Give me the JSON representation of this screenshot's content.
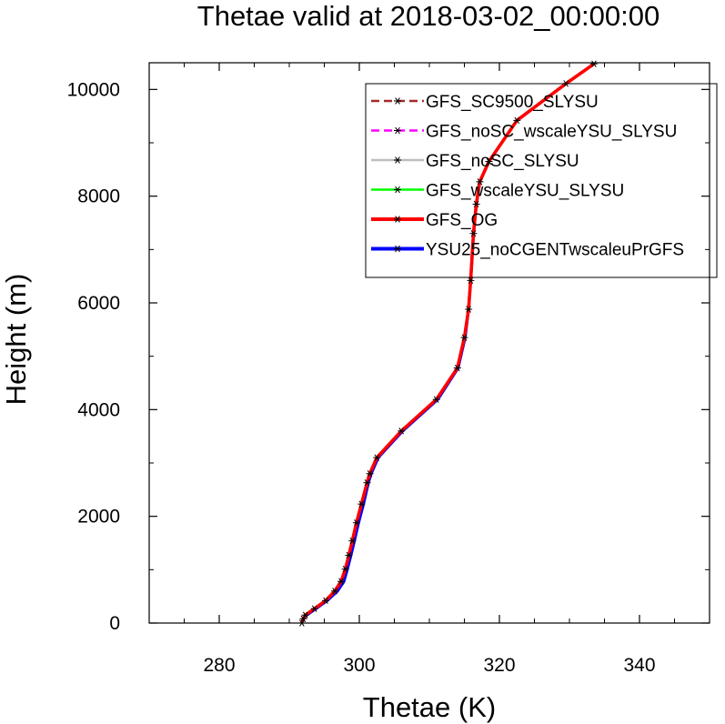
{
  "chart_data": {
    "type": "line",
    "title": "Thetae valid at 2018-03-02_00:00:00",
    "xlabel": "Thetae (K)",
    "ylabel": "Height (m)",
    "xlim": [
      270,
      350
    ],
    "ylim": [
      0,
      10500
    ],
    "xticks": [
      280,
      300,
      320,
      340
    ],
    "yticks": [
      0,
      2000,
      4000,
      6000,
      8000,
      10000
    ],
    "grid": false,
    "legend_position": "top-right",
    "series": [
      {
        "name": "GFS_SC9500_SLYSU",
        "color": "#a52a2a",
        "dashed": true,
        "marker": "asterisk",
        "x": [
          291.8,
          292.0,
          292.3,
          293.6,
          295.2,
          296.5,
          297.4,
          298.0,
          298.5,
          299.0,
          299.6,
          300.3,
          301.1,
          301.5,
          302.5,
          306.0,
          311.0,
          314.0,
          315.0,
          315.6,
          315.9,
          316.3,
          316.7,
          317.2,
          318.5,
          322.5,
          329.5,
          333.5
        ],
        "y": [
          0,
          80,
          150,
          270,
          420,
          600,
          780,
          1010,
          1270,
          1540,
          1880,
          2230,
          2630,
          2800,
          3100,
          3600,
          4190,
          4780,
          5350,
          5880,
          6420,
          7300,
          7850,
          8270,
          8650,
          9420,
          10110,
          10480
        ]
      },
      {
        "name": "GFS_noSC_wscaleYSU_SLYSU",
        "color": "#ff00ff",
        "dashed": true,
        "marker": "asterisk",
        "x": [
          291.8,
          292.0,
          292.3,
          293.6,
          295.2,
          296.5,
          297.4,
          298.0,
          298.5,
          299.0,
          299.6,
          300.3,
          301.1,
          301.5,
          302.5,
          306.0,
          311.0,
          314.0,
          315.0,
          315.6,
          315.9,
          316.3,
          316.7,
          317.2,
          318.5,
          322.5,
          329.5,
          333.5
        ],
        "y": [
          0,
          80,
          150,
          270,
          420,
          600,
          780,
          1010,
          1270,
          1540,
          1880,
          2230,
          2630,
          2800,
          3100,
          3600,
          4190,
          4780,
          5350,
          5880,
          6420,
          7300,
          7850,
          8270,
          8650,
          9420,
          10110,
          10480
        ]
      },
      {
        "name": "GFS_noSC_SLYSU",
        "color": "#bebebe",
        "dashed": false,
        "marker": "asterisk",
        "x": [
          291.8,
          292.0,
          292.3,
          293.6,
          295.2,
          296.5,
          297.4,
          298.0,
          298.5,
          299.0,
          299.6,
          300.3,
          301.1,
          301.5,
          302.5,
          306.0,
          311.0,
          314.0,
          315.0,
          315.6,
          315.9,
          316.3,
          316.7,
          317.2,
          318.5,
          322.5,
          329.5,
          333.5
        ],
        "y": [
          0,
          80,
          150,
          270,
          420,
          600,
          780,
          1010,
          1270,
          1540,
          1880,
          2230,
          2630,
          2800,
          3100,
          3600,
          4190,
          4780,
          5350,
          5880,
          6420,
          7300,
          7850,
          8270,
          8650,
          9420,
          10110,
          10480
        ]
      },
      {
        "name": "GFS_wscaleYSU_SLYSU",
        "color": "#00ff00",
        "dashed": false,
        "marker": "asterisk",
        "x": [
          291.8,
          292.0,
          292.3,
          293.6,
          295.2,
          296.5,
          297.4,
          298.0,
          298.5,
          299.0,
          299.6,
          300.3,
          301.1,
          301.5,
          302.5,
          306.0,
          311.0,
          314.0,
          315.0,
          315.6,
          315.9,
          316.3,
          316.7,
          317.2,
          318.5,
          322.5,
          329.5,
          333.5
        ],
        "y": [
          0,
          80,
          150,
          270,
          420,
          600,
          780,
          1010,
          1270,
          1540,
          1880,
          2230,
          2630,
          2800,
          3100,
          3600,
          4190,
          4780,
          5350,
          5880,
          6420,
          7300,
          7850,
          8270,
          8650,
          9420,
          10110,
          10480
        ]
      },
      {
        "name": "YSU25_noCGENTwscaleuPrGFS",
        "color": "#0000ff",
        "dashed": false,
        "marker": "asterisk",
        "x": [
          291.8,
          292.0,
          292.5,
          293.8,
          295.4,
          296.9,
          297.8,
          298.3,
          298.8,
          299.3,
          299.9,
          300.6,
          301.3,
          301.7,
          302.7,
          306.2,
          311.2,
          314.1,
          315.1,
          315.6,
          315.9,
          316.3,
          316.7,
          317.2,
          318.5,
          322.5,
          329.5,
          333.5
        ],
        "y": [
          0,
          80,
          150,
          270,
          420,
          600,
          780,
          1010,
          1270,
          1540,
          1880,
          2230,
          2630,
          2800,
          3100,
          3600,
          4190,
          4780,
          5350,
          5880,
          6420,
          7300,
          7850,
          8270,
          8650,
          9420,
          10110,
          10480
        ]
      },
      {
        "name": "GFS_OG",
        "color": "#ff0000",
        "dashed": false,
        "marker": "asterisk",
        "x": [
          291.8,
          292.0,
          292.3,
          293.6,
          295.2,
          296.5,
          297.4,
          298.0,
          298.5,
          299.0,
          299.6,
          300.3,
          301.1,
          301.5,
          302.5,
          306.0,
          311.0,
          314.0,
          315.0,
          315.6,
          315.9,
          316.3,
          316.7,
          317.2,
          318.5,
          322.5,
          329.5,
          333.5
        ],
        "y": [
          0,
          80,
          150,
          270,
          420,
          600,
          780,
          1010,
          1270,
          1540,
          1880,
          2230,
          2630,
          2800,
          3100,
          3600,
          4190,
          4780,
          5350,
          5880,
          6420,
          7300,
          7850,
          8270,
          8650,
          9420,
          10110,
          10480
        ]
      }
    ],
    "legend_entries": [
      {
        "name": "GFS_SC9500_SLYSU",
        "color": "#a52a2a",
        "dashed": true
      },
      {
        "name": "GFS_noSC_wscaleYSU_SLYSU",
        "color": "#ff00ff",
        "dashed": true
      },
      {
        "name": "GFS_noSC_SLYSU",
        "color": "#bebebe",
        "dashed": false
      },
      {
        "name": "GFS_wscaleYSU_SLYSU",
        "color": "#00ff00",
        "dashed": false
      },
      {
        "name": "GFS_OG",
        "color": "#ff0000",
        "dashed": false
      },
      {
        "name": "YSU25_noCGENTwscaleuPrGFS",
        "color": "#0000ff",
        "dashed": false
      }
    ]
  }
}
